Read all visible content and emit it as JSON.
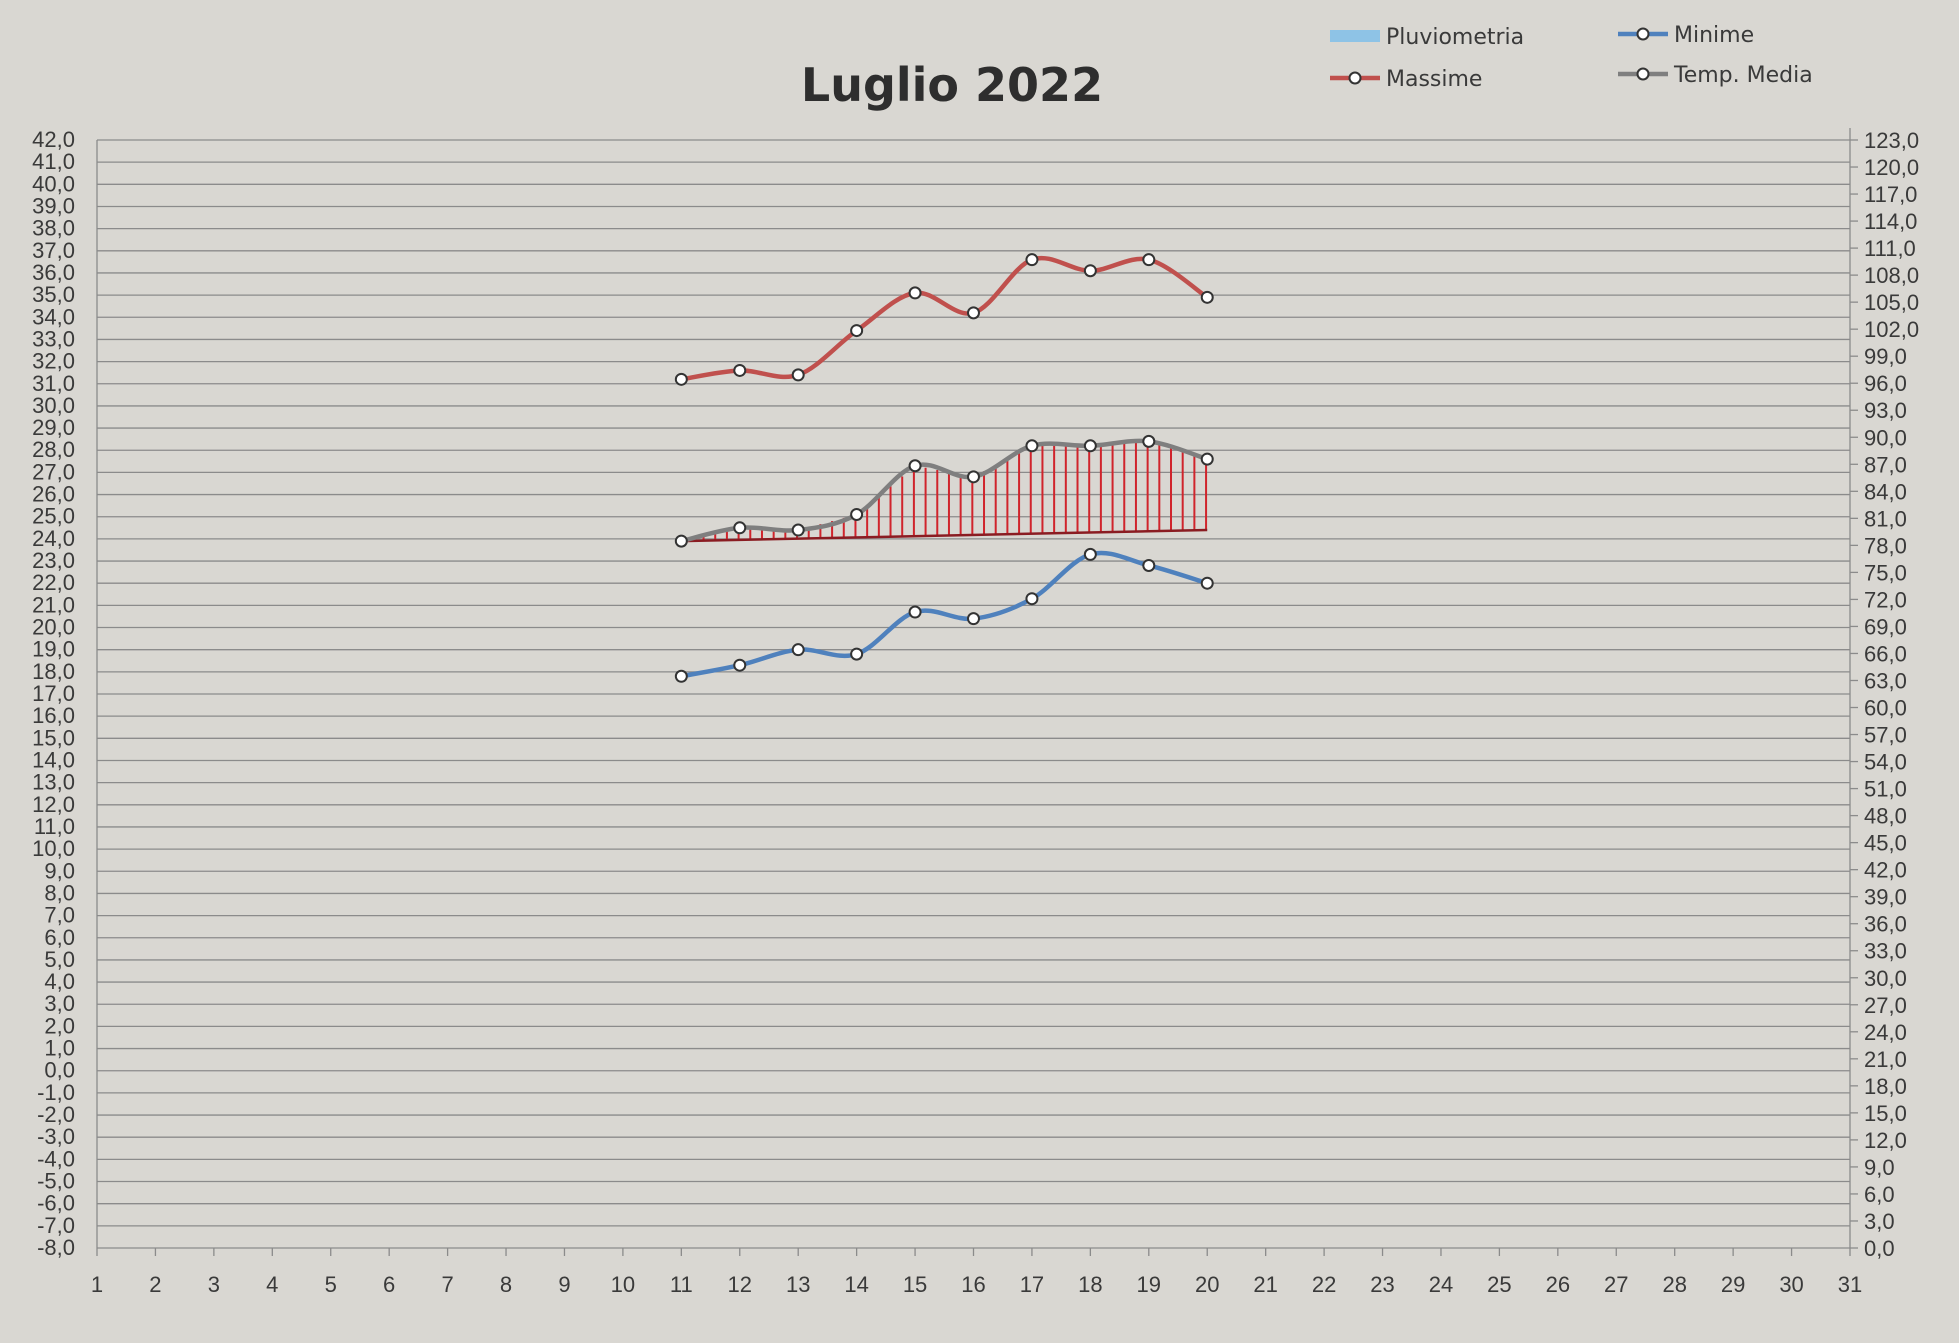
{
  "chart_data": {
    "type": "line",
    "title": "Luglio 2022",
    "x": [
      1,
      2,
      3,
      4,
      5,
      6,
      7,
      8,
      9,
      10,
      11,
      12,
      13,
      14,
      15,
      16,
      17,
      18,
      19,
      20,
      21,
      22,
      23,
      24,
      25,
      26,
      27,
      28,
      29,
      30,
      31
    ],
    "x_tick_labels": [
      "1",
      "2",
      "3",
      "4",
      "5",
      "6",
      "7",
      "8",
      "9",
      "10",
      "11",
      "12",
      "13",
      "14",
      "15",
      "16",
      "17",
      "18",
      "19",
      "20",
      "21",
      "22",
      "23",
      "24",
      "25",
      "26",
      "27",
      "28",
      "29",
      "30",
      "31"
    ],
    "ylim": [
      -8,
      42
    ],
    "y_step": 1,
    "y_tick_labels": [
      "42,0",
      "41,0",
      "40,0",
      "39,0",
      "38,0",
      "37,0",
      "36,0",
      "35,0",
      "34,0",
      "33,0",
      "32,0",
      "31,0",
      "30,0",
      "29,0",
      "28,0",
      "27,0",
      "26,0",
      "25,0",
      "24,0",
      "23,0",
      "22,0",
      "21,0",
      "20,0",
      "19,0",
      "18,0",
      "17,0",
      "16,0",
      "15,0",
      "14,0",
      "13,0",
      "12,0",
      "11,0",
      "10,0",
      "9,0",
      "8,0",
      "7,0",
      "6,0",
      "5,0",
      "4,0",
      "3,0",
      "2,0",
      "1,0",
      "0,0",
      "-1,0",
      "-2,0",
      "-3,0",
      "-4,0",
      "-5,0",
      "-6,0",
      "-7,0",
      "-8,0"
    ],
    "y2lim": [
      0,
      123
    ],
    "y2_step": 3,
    "y2_tick_labels": [
      "123,0",
      "120,0",
      "117,0",
      "114,0",
      "111,0",
      "108,0",
      "105,0",
      "102,0",
      "99,0",
      "96,0",
      "93,0",
      "90,0",
      "87,0",
      "84,0",
      "81,0",
      "78,0",
      "75,0",
      "72,0",
      "69,0",
      "66,0",
      "63,0",
      "60,0",
      "57,0",
      "54,0",
      "51,0",
      "48,0",
      "45,0",
      "42,0",
      "39,0",
      "36,0",
      "33,0",
      "30,0",
      "27,0",
      "24,0",
      "21,0",
      "18,0",
      "15,0",
      "12,0",
      "9,0",
      "6,0",
      "3,0",
      "0,0"
    ],
    "grid": true,
    "legend_position": "top-right",
    "legend": [
      {
        "label": "Pluviometria",
        "color": "#8ec3e6",
        "marker": "none"
      },
      {
        "label": "Minime",
        "color": "#4f81bd",
        "marker": "circle"
      },
      {
        "label": "Massime",
        "color": "#c0504d",
        "marker": "circle"
      },
      {
        "label": "Temp. Media",
        "color": "#7f7f7f",
        "marker": "circle"
      }
    ],
    "series": [
      {
        "name": "Massime",
        "color": "#c0504d",
        "x": [
          11,
          12,
          13,
          14,
          15,
          16,
          17,
          18,
          19,
          20
        ],
        "values": [
          31.2,
          31.6,
          31.4,
          33.4,
          35.1,
          34.2,
          36.6,
          36.1,
          36.6,
          34.9
        ]
      },
      {
        "name": "Temp. Media",
        "color": "#7f7f7f",
        "x": [
          11,
          12,
          13,
          14,
          15,
          16,
          17,
          18,
          19,
          20
        ],
        "values": [
          23.9,
          24.5,
          24.4,
          25.1,
          27.3,
          26.8,
          28.2,
          28.2,
          28.4,
          27.6
        ]
      },
      {
        "name": "Minime",
        "color": "#4f81bd",
        "x": [
          11,
          12,
          13,
          14,
          15,
          16,
          17,
          18,
          19,
          20
        ],
        "values": [
          17.8,
          18.3,
          19.0,
          18.8,
          20.7,
          20.4,
          21.3,
          23.3,
          22.8,
          22.0
        ]
      },
      {
        "name": "Pluviometria",
        "color": "#8ec3e6",
        "x": [],
        "values": []
      }
    ],
    "annotations": [
      {
        "type": "hatched-band",
        "color": "#d0242c",
        "x_range": [
          11,
          20
        ],
        "baseline": [
          23.9,
          24.4
        ],
        "upper_series": "Temp. Media"
      }
    ]
  }
}
